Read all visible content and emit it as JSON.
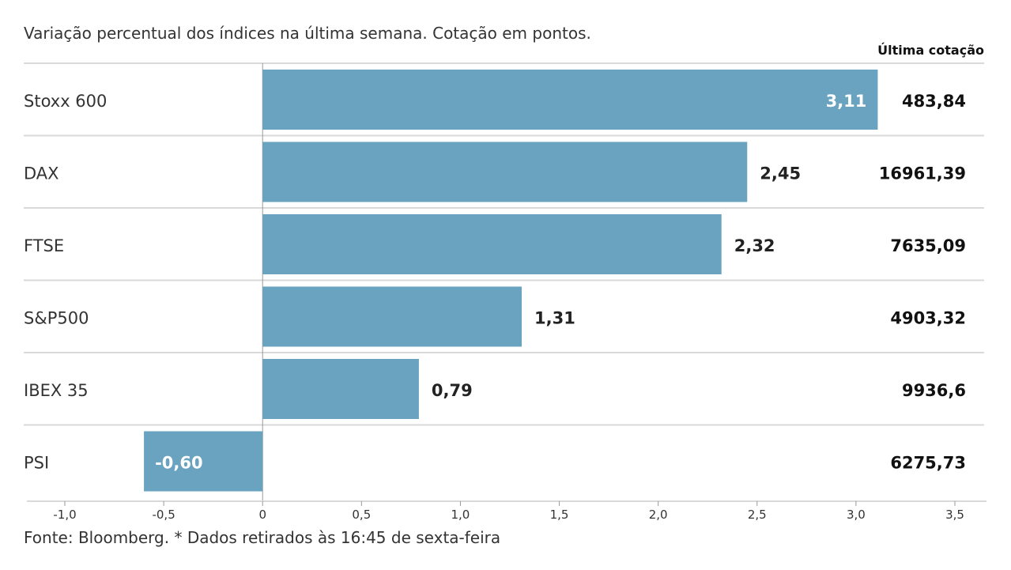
{
  "header": {
    "title": "Variação percentual dos índices na última semana. Cotação em pontos.",
    "quote_column": "Última cotação"
  },
  "footer": {
    "source": "Fonte: Bloomberg.  * Dados retirados às 16:45 de sexta-feira"
  },
  "colors": {
    "bar": "#6aa3bf",
    "grid": "#d9d9d9",
    "axis": "#999999"
  },
  "chart_data": {
    "type": "bar",
    "orientation": "horizontal",
    "title": "Variação percentual dos índices na última semana. Cotação em pontos.",
    "categories": [
      "Stoxx 600",
      "DAX",
      "FTSE",
      "S&P500",
      "IBEX 35",
      "PSI"
    ],
    "values": [
      3.11,
      2.45,
      2.32,
      1.31,
      0.79,
      -0.6
    ],
    "value_labels": [
      "3,11",
      "2,45",
      "2,32",
      "1,31",
      "0,79",
      "-0,60"
    ],
    "last_quote": [
      "483,84",
      "16961,39",
      "7635,09",
      "4903,32",
      "9936,6",
      "6275,73"
    ],
    "xlim": [
      -1.0,
      3.5
    ],
    "ticks": [
      -1.0,
      -0.5,
      0,
      0.5,
      1.0,
      1.5,
      2.0,
      2.5,
      3.0,
      3.5
    ],
    "tick_labels": [
      "-1,0",
      "-0,5",
      "0",
      "0,5",
      "1,0",
      "1,5",
      "2,0",
      "2,5",
      "3,0",
      "3,5"
    ],
    "xlabel": "",
    "ylabel": "",
    "legend": "none"
  }
}
